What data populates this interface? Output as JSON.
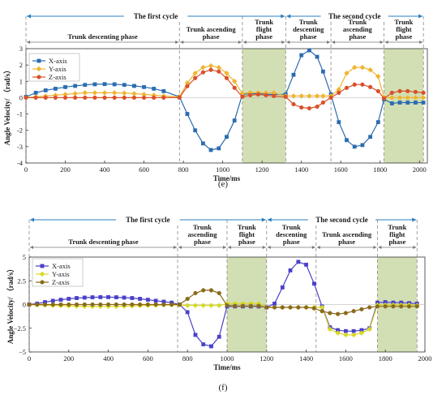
{
  "colors": {
    "x": "#2b6cb0",
    "y": "#f0b430",
    "z": "#d9502a",
    "x_f": "#4a40c8",
    "y_f": "#d8d820",
    "z_f": "#8a6a1a",
    "flight": "#d2dfb4",
    "cycle_arrow": "#2a7fc0"
  },
  "chart_data": [
    {
      "type": "line",
      "panel_label": "(e)",
      "cycles": [
        {
          "label": "The first cycle",
          "x_range": [
            0,
            1320
          ]
        },
        {
          "label": "The second cycle",
          "x_range": [
            1320,
            2020
          ]
        }
      ],
      "phases": [
        {
          "label": "Trunk descenting phase",
          "x_range": [
            0,
            780
          ]
        },
        {
          "label": "Trunk ascending phase",
          "x_range": [
            780,
            1100
          ]
        },
        {
          "label": "Trunk flight phase",
          "x_range": [
            1100,
            1320
          ]
        },
        {
          "label": "Trunk descenting phase",
          "x_range": [
            1320,
            1550
          ]
        },
        {
          "label": "Trunk ascending phase",
          "x_range": [
            1550,
            1820
          ]
        },
        {
          "label": "Trunk flight phase",
          "x_range": [
            1820,
            2020
          ]
        }
      ],
      "flight_regions": [
        [
          1100,
          1320
        ],
        [
          1820,
          2020
        ]
      ],
      "xlabel": "Time/ms",
      "ylabel": "Angle Velocity/ （rad/s）",
      "xlim": [
        0,
        2040
      ],
      "ylim": [
        -4,
        3
      ],
      "xticks": [
        0,
        200,
        400,
        600,
        800,
        1000,
        1200,
        1400,
        1600,
        1800,
        2000
      ],
      "yticks": [
        3,
        2,
        1,
        0,
        -1,
        -2,
        -3,
        -4
      ],
      "legend_position": "top-left",
      "x": [
        0,
        50,
        100,
        150,
        200,
        250,
        300,
        350,
        400,
        450,
        500,
        550,
        600,
        650,
        700,
        780,
        820,
        860,
        900,
        940,
        980,
        1020,
        1060,
        1100,
        1140,
        1180,
        1220,
        1260,
        1320,
        1360,
        1400,
        1440,
        1480,
        1510,
        1550,
        1590,
        1630,
        1670,
        1710,
        1750,
        1790,
        1820,
        1860,
        1900,
        1940,
        1980,
        2020
      ],
      "series": [
        {
          "name": "X-axis",
          "values": [
            0.05,
            0.3,
            0.45,
            0.55,
            0.65,
            0.72,
            0.78,
            0.82,
            0.83,
            0.82,
            0.78,
            0.72,
            0.65,
            0.55,
            0.4,
            0.05,
            -1.0,
            -2.0,
            -2.8,
            -3.2,
            -3.1,
            -2.4,
            -1.4,
            0.2,
            0.25,
            0.25,
            0.2,
            0.2,
            0.2,
            1.4,
            2.6,
            2.9,
            2.5,
            1.6,
            0.2,
            -1.5,
            -2.6,
            -3.0,
            -2.9,
            -2.4,
            -1.5,
            -0.1,
            -0.35,
            -0.3,
            -0.3,
            -0.3,
            -0.3
          ]
        },
        {
          "name": "Y-axis",
          "values": [
            0.0,
            0.05,
            0.1,
            0.15,
            0.2,
            0.25,
            0.3,
            0.3,
            0.3,
            0.3,
            0.28,
            0.25,
            0.2,
            0.15,
            0.1,
            0.05,
            0.9,
            1.5,
            1.85,
            1.95,
            1.85,
            1.5,
            1.0,
            0.25,
            0.3,
            0.3,
            0.3,
            0.3,
            0.1,
            0.1,
            0.1,
            0.1,
            0.1,
            0.1,
            0.1,
            0.5,
            1.5,
            1.85,
            1.85,
            1.7,
            1.3,
            0.0,
            0.0,
            0.0,
            0.0,
            0.0,
            0.0
          ]
        },
        {
          "name": "Z-axis",
          "values": [
            0.0,
            0.0,
            0.0,
            0.0,
            0.0,
            0.0,
            0.0,
            0.0,
            0.0,
            0.0,
            0.0,
            0.0,
            0.0,
            0.0,
            0.0,
            0.0,
            0.7,
            1.2,
            1.55,
            1.7,
            1.6,
            1.2,
            0.6,
            0.05,
            0.15,
            0.2,
            0.15,
            0.1,
            0.05,
            -0.4,
            -0.6,
            -0.65,
            -0.55,
            -0.3,
            0.0,
            0.3,
            0.6,
            0.8,
            0.8,
            0.65,
            0.4,
            -0.05,
            0.3,
            0.4,
            0.4,
            0.35,
            0.3
          ]
        }
      ]
    },
    {
      "type": "line",
      "panel_label": "(f)",
      "cycles": [
        {
          "label": "The first cycle",
          "x_range": [
            0,
            1200
          ]
        },
        {
          "label": "The second cycle",
          "x_range": [
            1200,
            1960
          ]
        }
      ],
      "phases": [
        {
          "label": "Trunk descenting phase",
          "x_range": [
            0,
            750
          ]
        },
        {
          "label": "Trunk ascending phase",
          "x_range": [
            750,
            1000
          ]
        },
        {
          "label": "Trunk flight phase",
          "x_range": [
            1000,
            1200
          ]
        },
        {
          "label": "Trunk descenting phase",
          "x_range": [
            1200,
            1450
          ]
        },
        {
          "label": "Trunk ascending phase",
          "x_range": [
            1450,
            1760
          ]
        },
        {
          "label": "Trunk flight phase",
          "x_range": [
            1760,
            1960
          ]
        }
      ],
      "flight_regions": [
        [
          1000,
          1200
        ],
        [
          1760,
          1960
        ]
      ],
      "xlabel": "Time/ms",
      "ylabel": "Angle Velocity/ （rad/s）",
      "xlim": [
        0,
        2000
      ],
      "ylim": [
        -5,
        5
      ],
      "xticks": [
        0,
        200,
        400,
        600,
        800,
        1000,
        1200,
        1400,
        1600,
        1800,
        2000
      ],
      "ytick_values": [
        5,
        2.5,
        0,
        -2.5,
        -5
      ],
      "ytick_labels": [
        "5",
        "2.5",
        "0",
        "−2.5",
        "−5"
      ],
      "legend_position": "top-left",
      "x": [
        0,
        40,
        80,
        120,
        160,
        200,
        240,
        280,
        320,
        360,
        400,
        440,
        480,
        520,
        560,
        600,
        640,
        680,
        720,
        760,
        800,
        840,
        880,
        920,
        960,
        1000,
        1040,
        1080,
        1120,
        1160,
        1200,
        1240,
        1280,
        1320,
        1360,
        1400,
        1440,
        1480,
        1520,
        1560,
        1600,
        1640,
        1680,
        1720,
        1760,
        1800,
        1840,
        1880,
        1920,
        1960
      ],
      "series": [
        {
          "name": "X-axis",
          "values": [
            0.0,
            0.1,
            0.25,
            0.4,
            0.5,
            0.6,
            0.68,
            0.73,
            0.76,
            0.78,
            0.78,
            0.76,
            0.73,
            0.68,
            0.6,
            0.5,
            0.4,
            0.3,
            0.2,
            0.0,
            -0.8,
            -3.2,
            -4.2,
            -4.4,
            -3.4,
            -0.2,
            -0.2,
            -0.2,
            -0.2,
            -0.2,
            -0.3,
            0.1,
            1.8,
            3.6,
            4.5,
            4.2,
            2.2,
            -0.2,
            -2.4,
            -2.7,
            -2.8,
            -2.8,
            -2.7,
            -2.5,
            0.2,
            0.25,
            0.2,
            0.2,
            0.15,
            0.1
          ]
        },
        {
          "name": "Y-axis",
          "values": [
            0.0,
            -0.05,
            -0.08,
            -0.1,
            -0.12,
            -0.15,
            -0.18,
            -0.2,
            -0.2,
            -0.2,
            -0.2,
            -0.2,
            -0.18,
            -0.15,
            -0.12,
            -0.1,
            -0.08,
            -0.05,
            -0.05,
            -0.05,
            -0.1,
            -0.1,
            -0.1,
            -0.1,
            -0.1,
            0.1,
            0.1,
            0.1,
            0.1,
            0.1,
            -0.3,
            -0.3,
            -0.3,
            -0.3,
            -0.3,
            -0.3,
            -0.3,
            -0.3,
            -2.6,
            -3.0,
            -3.2,
            -3.2,
            -3.0,
            -2.6,
            -0.05,
            -0.05,
            -0.05,
            -0.05,
            -0.05,
            -0.1
          ]
        },
        {
          "name": "Z-axis",
          "values": [
            0.0,
            0.0,
            0.0,
            0.0,
            0.0,
            0.0,
            0.0,
            0.0,
            0.0,
            0.0,
            0.0,
            0.0,
            0.0,
            0.0,
            0.0,
            0.0,
            0.0,
            0.0,
            0.0,
            0.0,
            0.6,
            1.2,
            1.5,
            1.5,
            1.2,
            -0.1,
            -0.15,
            -0.15,
            -0.15,
            -0.15,
            -0.3,
            -0.3,
            -0.3,
            -0.3,
            -0.3,
            -0.3,
            -0.4,
            -0.7,
            -0.9,
            -1.0,
            -0.9,
            -0.7,
            -0.5,
            -0.3,
            -0.2,
            -0.2,
            -0.2,
            -0.2,
            -0.2,
            -0.2
          ]
        }
      ]
    }
  ]
}
